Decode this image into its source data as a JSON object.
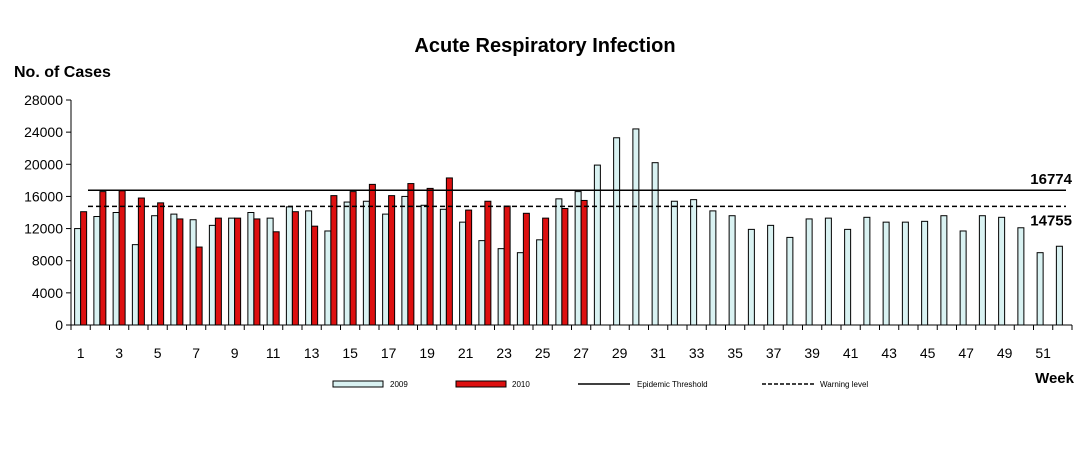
{
  "chart_data": {
    "type": "bar",
    "title": "Acute Respiratory Infection",
    "ylabel": "No. of Cases",
    "xlabel": "Week",
    "ylim": [
      0,
      28000
    ],
    "yticks": [
      0,
      4000,
      8000,
      12000,
      16000,
      20000,
      24000,
      28000
    ],
    "categories": [
      1,
      2,
      3,
      4,
      5,
      6,
      7,
      8,
      9,
      10,
      11,
      12,
      13,
      14,
      15,
      16,
      17,
      18,
      19,
      20,
      21,
      22,
      23,
      24,
      25,
      26,
      27,
      28,
      29,
      30,
      31,
      32,
      33,
      34,
      35,
      36,
      37,
      38,
      39,
      40,
      41,
      42,
      43,
      44,
      45,
      46,
      47,
      48,
      49,
      50,
      51,
      52
    ],
    "xtick_labels": [
      "1",
      "3",
      "5",
      "7",
      "9",
      "11",
      "13",
      "15",
      "17",
      "19",
      "21",
      "23",
      "25",
      "27",
      "29",
      "31",
      "33",
      "35",
      "37",
      "39",
      "41",
      "43",
      "45",
      "47",
      "49",
      "51"
    ],
    "series": [
      {
        "name": "2009",
        "color": "#d9f2f2",
        "values": [
          12000,
          13500,
          14000,
          10000,
          13600,
          13800,
          13100,
          12400,
          13300,
          14000,
          13300,
          14700,
          14200,
          11700,
          15300,
          15400,
          13800,
          16000,
          14900,
          14400,
          12800,
          10500,
          9500,
          9000,
          10600,
          15700,
          16600,
          19900,
          23300,
          24400,
          20200,
          15400,
          15600,
          14200,
          13600,
          11900,
          12400,
          10900,
          13200,
          13300,
          11900,
          13400,
          12800,
          12800,
          12900,
          13600,
          11700,
          13600,
          13400,
          12100,
          9000,
          9800
        ]
      },
      {
        "name": "2010",
        "color": "#dd1010",
        "values": [
          14100,
          16600,
          16700,
          15800,
          15200,
          13200,
          9700,
          13300,
          13300,
          13200,
          11600,
          14100,
          12300,
          16100,
          16600,
          17500,
          16100,
          17600,
          17000,
          18300,
          14300,
          15400,
          14800,
          13900,
          13300,
          14500,
          15500,
          null,
          null,
          null,
          null,
          null,
          null,
          null,
          null,
          null,
          null,
          null,
          null,
          null,
          null,
          null,
          null,
          null,
          null,
          null,
          null,
          null,
          null,
          null,
          null,
          null
        ]
      }
    ],
    "reference_lines": [
      {
        "name": "Epidemic Threshold",
        "value": 16774,
        "label": "16774",
        "style": "solid"
      },
      {
        "name": "Warning level",
        "value": 14755,
        "label": "14755",
        "style": "dashed"
      }
    ],
    "legend": {
      "placement": "bottom",
      "items": [
        {
          "label": "2009",
          "kind": "bar",
          "color": "#d9f2f2"
        },
        {
          "label": "2010",
          "kind": "bar",
          "color": "#dd1010"
        },
        {
          "label": "Epidemic Threshold",
          "kind": "line-solid"
        },
        {
          "label": "Warning level",
          "kind": "line-dashed"
        }
      ]
    },
    "grid": false
  }
}
